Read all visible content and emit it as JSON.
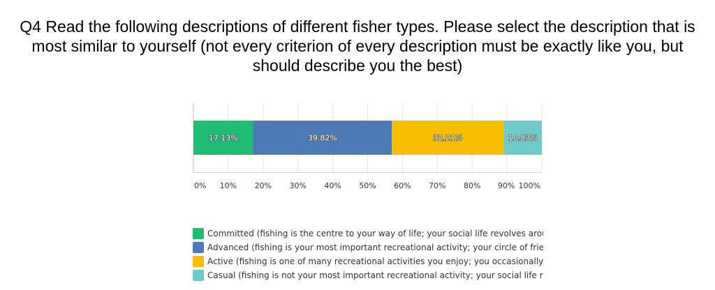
{
  "title": "Q4 Read the following descriptions of different fisher types. Please select the description that is most similar to yourself (not every criterion of every description must be exactly like you, but should describe you the best)",
  "chart_data": {
    "type": "bar",
    "orientation": "horizontal-stacked-100",
    "title": "Q4 Read the following descriptions of different fisher types. Please select the description that is most similar to yourself (not every criterion of every description must be exactly like you, but should describe you the best)",
    "xlim": [
      0,
      100
    ],
    "ticks": [
      "0%",
      "10%",
      "20%",
      "30%",
      "40%",
      "50%",
      "60%",
      "70%",
      "80%",
      "90%",
      "100%"
    ],
    "grid": true,
    "legend_position": "bottom",
    "series": [
      {
        "name": "Committed (fishing is the centre to your way of life; your social life revolves arour",
        "value": 17.13,
        "label": "17.13%",
        "color": "#1ebd73"
      },
      {
        "name": "Advanced (fishing is your most important recreational activity; your circle of frier",
        "value": 39.82,
        "label": "39.82%",
        "color": "#4e79b7"
      },
      {
        "name": "Active (fishing is one of many recreational activities you enjoy; you occasionally g",
        "value": 32.21,
        "label": "32.21%",
        "color": "#f9be00"
      },
      {
        "name": "Casual (fishing is not your most important recreational activity; your social life ra",
        "value": 10.83,
        "label": "10.83%",
        "color": "#6ecbcb"
      }
    ]
  }
}
